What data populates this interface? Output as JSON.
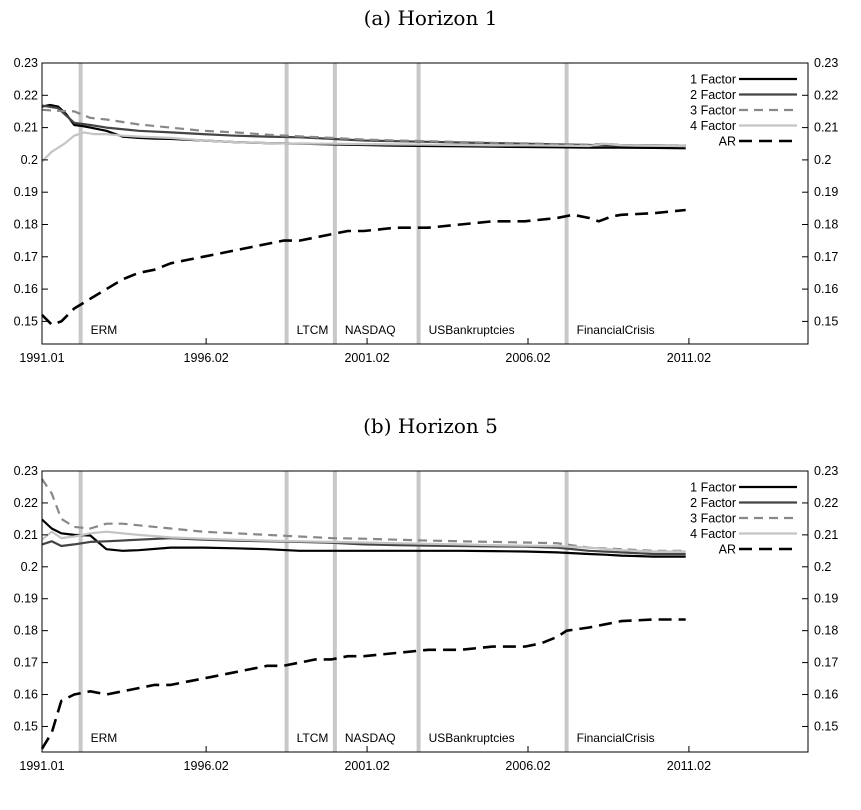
{
  "chart_data": [
    {
      "type": "line",
      "title": "(a) Horizon 1",
      "x_ticks": [
        "1991.01",
        "1996.02",
        "2001.02",
        "2006.02",
        "2011.02"
      ],
      "xlim": [
        1991.0,
        2014.8
      ],
      "ylim": [
        0.143,
        0.23
      ],
      "y_ticks": [
        "0.15",
        "0.16",
        "0.17",
        "0.18",
        "0.19",
        "0.2",
        "0.21",
        "0.22",
        "0.23"
      ],
      "y_tick_values": [
        0.15,
        0.16,
        0.17,
        0.18,
        0.19,
        0.2,
        0.21,
        0.22,
        0.23
      ],
      "legend_position": "top-right",
      "events": [
        {
          "label": "ERM",
          "x": 1992.2
        },
        {
          "label": "LTCM",
          "x": 1998.6
        },
        {
          "label": "NASDAQ",
          "x": 2000.1
        },
        {
          "label": "USBankruptcies",
          "x": 2002.7
        },
        {
          "label": "FinancialCrisis",
          "x": 2007.3
        }
      ],
      "series": [
        {
          "name": "1 Factor",
          "color": "#000000",
          "dash": "solid",
          "width": 2.2,
          "x": [
            1991.0,
            1991.25,
            1991.5,
            1991.75,
            1992.0,
            1992.25,
            1992.5,
            1993.0,
            1993.5,
            1994.0,
            1994.5,
            1995.0,
            1996.0,
            1997.0,
            1998.0,
            1999.0,
            2000.0,
            2001.0,
            2002.0,
            2003.0,
            2004.0,
            2005.0,
            2006.0,
            2007.0,
            2008.0,
            2009.0,
            2010.0,
            2011.0
          ],
          "y": [
            0.2165,
            0.217,
            0.2165,
            0.2142,
            0.2108,
            0.2105,
            0.21,
            0.209,
            0.2072,
            0.2068,
            0.2066,
            0.2065,
            0.206,
            0.2055,
            0.2052,
            0.205,
            0.2048,
            0.2046,
            0.2044,
            0.2043,
            0.2042,
            0.2041,
            0.204,
            0.2039,
            0.2038,
            0.2038,
            0.2037,
            0.2036
          ]
        },
        {
          "name": "2 Factor",
          "color": "#444444",
          "dash": "solid",
          "width": 2.2,
          "x": [
            1991.0,
            1991.5,
            1992.0,
            1992.5,
            1993.0,
            1994.0,
            1995.0,
            1996.0,
            1997.0,
            1998.0,
            1999.0,
            2000.0,
            2001.0,
            2002.0,
            2003.0,
            2004.0,
            2005.0,
            2006.0,
            2007.0,
            2008.0,
            2009.0,
            2010.0,
            2011.0
          ],
          "y": [
            0.2168,
            0.216,
            0.2115,
            0.2108,
            0.21,
            0.209,
            0.2085,
            0.208,
            0.2075,
            0.2072,
            0.207,
            0.2065,
            0.206,
            0.2058,
            0.2056,
            0.2054,
            0.2052,
            0.205,
            0.2048,
            0.2046,
            0.2045,
            0.2045,
            0.2044
          ]
        },
        {
          "name": "3 Factor",
          "color": "#888888",
          "dash": "dash",
          "width": 2.2,
          "x": [
            1991.0,
            1991.5,
            1992.0,
            1992.5,
            1993.0,
            1994.0,
            1995.0,
            1996.0,
            1997.0,
            1998.0,
            1999.0,
            2000.0,
            2001.0,
            2002.0,
            2003.0,
            2004.0,
            2005.0,
            2006.0,
            2007.0,
            2008.0,
            2008.5,
            2009.0,
            2010.0,
            2011.0
          ],
          "y": [
            0.2155,
            0.2152,
            0.215,
            0.213,
            0.2125,
            0.211,
            0.21,
            0.209,
            0.2085,
            0.2078,
            0.2073,
            0.2068,
            0.2063,
            0.206,
            0.2058,
            0.2055,
            0.2053,
            0.2051,
            0.2049,
            0.2047,
            0.205,
            0.2046,
            0.2045,
            0.2045
          ]
        },
        {
          "name": "4 Factor",
          "color": "#c4c4c4",
          "dash": "solid",
          "width": 2.2,
          "x": [
            1991.0,
            1991.3,
            1991.7,
            1992.0,
            1992.3,
            1992.6,
            1993.0,
            1993.5,
            1994.0,
            1995.0,
            1996.0,
            1997.0,
            1998.0,
            1999.0,
            2000.0,
            2001.0,
            2002.0,
            2003.0,
            2004.0,
            2005.0,
            2006.0,
            2007.0,
            2008.0,
            2008.5,
            2009.0,
            2010.0,
            2011.0
          ],
          "y": [
            0.1995,
            0.2025,
            0.205,
            0.2075,
            0.2085,
            0.208,
            0.208,
            0.2075,
            0.2072,
            0.2068,
            0.206,
            0.2055,
            0.2052,
            0.205,
            0.205,
            0.2049,
            0.2048,
            0.2047,
            0.2046,
            0.2045,
            0.2045,
            0.2044,
            0.2043,
            0.205,
            0.2045,
            0.2044,
            0.2044
          ]
        },
        {
          "name": "AR",
          "color": "#000000",
          "dash": "bigdash",
          "width": 2.6,
          "x": [
            1991.0,
            1991.3,
            1991.6,
            1992.0,
            1992.5,
            1993.0,
            1993.5,
            1994.0,
            1994.5,
            1995.0,
            1995.5,
            1996.0,
            1996.5,
            1997.0,
            1997.5,
            1998.0,
            1998.5,
            1999.0,
            1999.5,
            2000.0,
            2000.5,
            2001.0,
            2002.0,
            2003.0,
            2004.0,
            2005.0,
            2006.0,
            2007.0,
            2007.5,
            2008.0,
            2008.3,
            2008.7,
            2009.0,
            2010.0,
            2011.0
          ],
          "y": [
            0.152,
            0.149,
            0.15,
            0.154,
            0.157,
            0.16,
            0.163,
            0.165,
            0.166,
            0.168,
            0.169,
            0.17,
            0.171,
            0.172,
            0.173,
            0.174,
            0.175,
            0.175,
            0.176,
            0.177,
            0.178,
            0.178,
            0.179,
            0.179,
            0.18,
            0.181,
            0.181,
            0.182,
            0.183,
            0.182,
            0.181,
            0.1825,
            0.183,
            0.1835,
            0.1845
          ]
        }
      ]
    },
    {
      "type": "line",
      "title": "(b) Horizon 5",
      "x_ticks": [
        "1991.01",
        "1996.02",
        "2001.02",
        "2006.02",
        "2011.02"
      ],
      "xlim": [
        1991.0,
        2014.8
      ],
      "ylim": [
        0.142,
        0.23
      ],
      "y_ticks": [
        "0.15",
        "0.16",
        "0.17",
        "0.18",
        "0.19",
        "0.2",
        "0.21",
        "0.22",
        "0.23"
      ],
      "y_tick_values": [
        0.15,
        0.16,
        0.17,
        0.18,
        0.19,
        0.2,
        0.21,
        0.22,
        0.23
      ],
      "legend_position": "top-right",
      "events": [
        {
          "label": "ERM",
          "x": 1992.2
        },
        {
          "label": "LTCM",
          "x": 1998.6
        },
        {
          "label": "NASDAQ",
          "x": 2000.1
        },
        {
          "label": "USBankruptcies",
          "x": 2002.7
        },
        {
          "label": "FinancialCrisis",
          "x": 2007.3
        }
      ],
      "series": [
        {
          "name": "1 Factor",
          "color": "#000000",
          "dash": "solid",
          "width": 2.2,
          "x": [
            1991.0,
            1991.3,
            1991.6,
            1992.0,
            1992.5,
            1993.0,
            1993.5,
            1994.0,
            1995.0,
            1996.0,
            1997.0,
            1998.0,
            1999.0,
            2000.0,
            2001.0,
            2002.0,
            2003.0,
            2004.0,
            2005.0,
            2006.0,
            2007.0,
            2008.0,
            2008.5,
            2009.0,
            2010.0,
            2011.0
          ],
          "y": [
            0.2148,
            0.212,
            0.2105,
            0.21,
            0.2098,
            0.2055,
            0.205,
            0.2052,
            0.206,
            0.206,
            0.2058,
            0.2055,
            0.205,
            0.205,
            0.205,
            0.205,
            0.205,
            0.205,
            0.2049,
            0.2048,
            0.2045,
            0.204,
            0.2038,
            0.2035,
            0.2032,
            0.2032
          ]
        },
        {
          "name": "2 Factor",
          "color": "#444444",
          "dash": "solid",
          "width": 2.2,
          "x": [
            1991.0,
            1991.3,
            1991.6,
            1992.0,
            1992.5,
            1993.0,
            1994.0,
            1995.0,
            1996.0,
            1997.0,
            1998.0,
            1999.0,
            2000.0,
            2001.0,
            2002.0,
            2003.0,
            2004.0,
            2005.0,
            2006.0,
            2007.0,
            2008.0,
            2009.0,
            2010.0,
            2011.0
          ],
          "y": [
            0.207,
            0.208,
            0.2065,
            0.207,
            0.2078,
            0.208,
            0.2085,
            0.209,
            0.2085,
            0.2082,
            0.208,
            0.2078,
            0.2075,
            0.207,
            0.2068,
            0.2066,
            0.2065,
            0.2064,
            0.2063,
            0.206,
            0.205,
            0.2045,
            0.204,
            0.204
          ]
        },
        {
          "name": "3 Factor",
          "color": "#888888",
          "dash": "dash",
          "width": 2.2,
          "x": [
            1991.0,
            1991.3,
            1991.6,
            1992.0,
            1992.5,
            1993.0,
            1993.5,
            1994.0,
            1995.0,
            1996.0,
            1997.0,
            1998.0,
            1999.0,
            2000.0,
            2001.0,
            2002.0,
            2003.0,
            2004.0,
            2005.0,
            2006.0,
            2007.0,
            2008.0,
            2009.0,
            2010.0,
            2011.0
          ],
          "y": [
            0.2275,
            0.223,
            0.215,
            0.2125,
            0.212,
            0.2135,
            0.2135,
            0.213,
            0.212,
            0.211,
            0.2105,
            0.21,
            0.2095,
            0.209,
            0.2088,
            0.2085,
            0.2082,
            0.208,
            0.2078,
            0.2076,
            0.2074,
            0.206,
            0.2055,
            0.205,
            0.205
          ]
        },
        {
          "name": "4 Factor",
          "color": "#c4c4c4",
          "dash": "solid",
          "width": 2.2,
          "x": [
            1991.0,
            1991.3,
            1991.6,
            1992.0,
            1992.5,
            1993.0,
            1994.0,
            1995.0,
            1996.0,
            1997.0,
            1998.0,
            1999.0,
            2000.0,
            2001.0,
            2002.0,
            2003.0,
            2004.0,
            2005.0,
            2006.0,
            2007.0,
            2008.0,
            2009.0,
            2010.0,
            2011.0
          ],
          "y": [
            0.2085,
            0.211,
            0.209,
            0.2095,
            0.2105,
            0.211,
            0.21,
            0.2092,
            0.2088,
            0.2085,
            0.2082,
            0.208,
            0.2078,
            0.2076,
            0.2074,
            0.2072,
            0.207,
            0.2068,
            0.2066,
            0.2065,
            0.206,
            0.2052,
            0.2048,
            0.2048
          ]
        },
        {
          "name": "AR",
          "color": "#000000",
          "dash": "bigdash",
          "width": 2.6,
          "x": [
            1991.0,
            1991.3,
            1991.6,
            1992.0,
            1992.5,
            1993.0,
            1993.5,
            1994.0,
            1994.5,
            1995.0,
            1995.5,
            1996.0,
            1996.5,
            1997.0,
            1997.5,
            1998.0,
            1998.5,
            1999.0,
            1999.5,
            2000.0,
            2000.5,
            2001.0,
            2002.0,
            2003.0,
            2004.0,
            2005.0,
            2006.0,
            2006.5,
            2007.0,
            2007.3,
            2008.0,
            2008.5,
            2009.0,
            2010.0,
            2011.0
          ],
          "y": [
            0.143,
            0.148,
            0.158,
            0.16,
            0.161,
            0.16,
            0.161,
            0.162,
            0.163,
            0.163,
            0.164,
            0.165,
            0.166,
            0.167,
            0.168,
            0.169,
            0.169,
            0.17,
            0.171,
            0.171,
            0.172,
            0.172,
            0.173,
            0.174,
            0.174,
            0.175,
            0.175,
            0.176,
            0.178,
            0.18,
            0.181,
            0.182,
            0.183,
            0.1835,
            0.1835
          ]
        }
      ]
    }
  ]
}
